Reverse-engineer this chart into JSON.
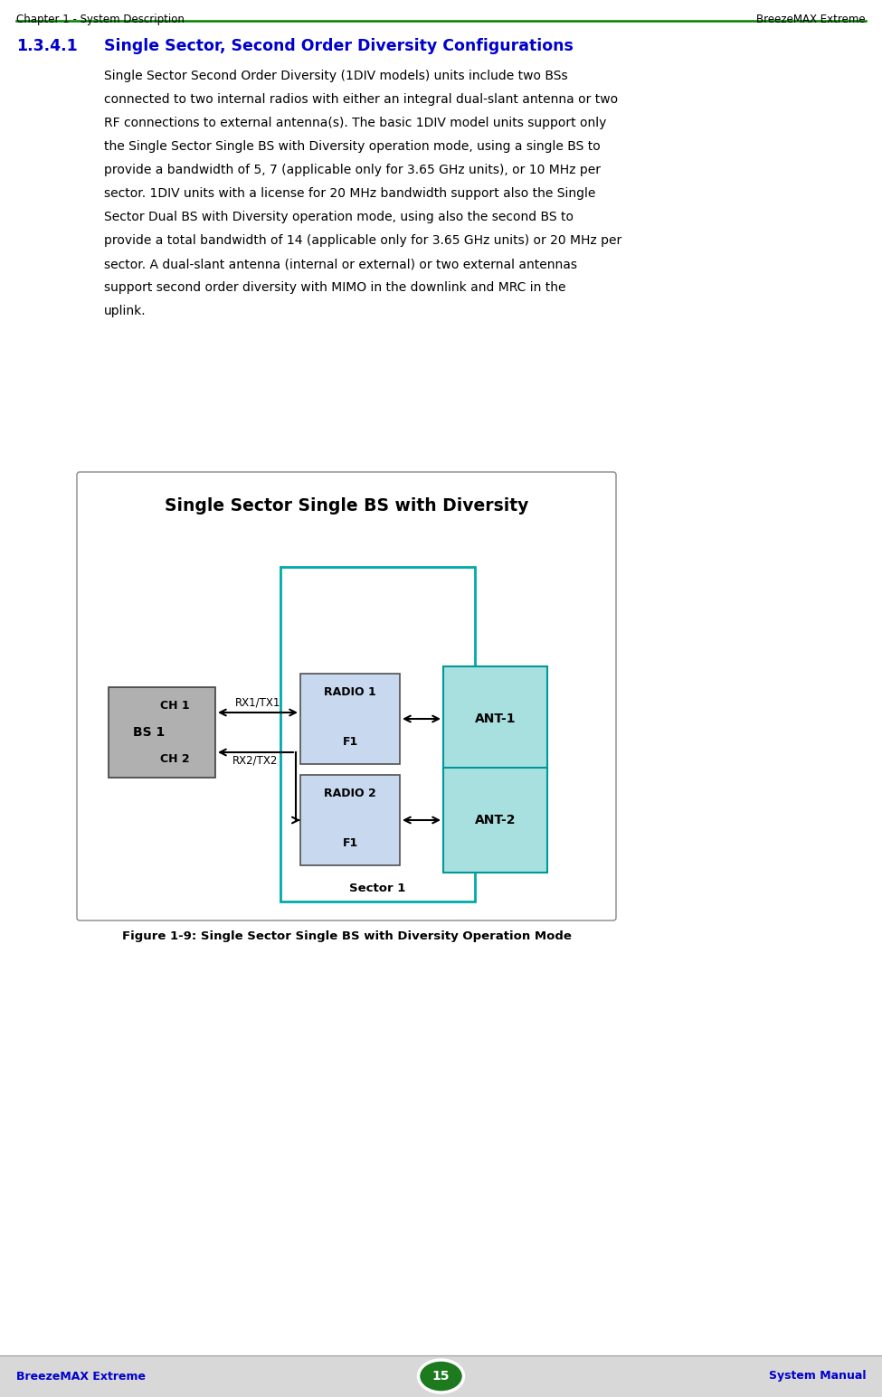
{
  "page_header_left": "Chapter 1 - System Description",
  "page_header_right": "BreezeMAX Extreme",
  "header_line_color": "#008000",
  "section_number": "1.3.4.1",
  "section_title": "Single Sector, Second Order Diversity Configurations",
  "section_color": "#0000CC",
  "body_text": [
    "Single Sector Second Order Diversity (1DIV models) units include two BSs",
    "connected to two internal radios with either an integral dual-slant antenna or two",
    "RF connections to external antenna(s). The basic 1DIV model units support only",
    "the Single Sector Single BS with Diversity operation mode, using a single BS to",
    "provide a bandwidth of 5, 7 (applicable only for 3.65 GHz units), or 10 MHz per",
    "sector. 1DIV units with a license for 20 MHz bandwidth support also the Single",
    "Sector Dual BS with Diversity operation mode, using also the second BS to",
    "provide a total bandwidth of 14 (applicable only for 3.65 GHz units) or 20 MHz per",
    "sector. A dual-slant antenna (internal or external) or two external antennas",
    "support second order diversity with MIMO in the downlink and MRC in the",
    "uplink."
  ],
  "diagram_title_normal": "Single Sector Single BS ",
  "diagram_title_bold": "with Diversity",
  "diagram_bg": "#FFFFFF",
  "sector_border_color": "#00AAAA",
  "bs_box_color": "#B0B0B0",
  "radio_box_color": "#C8D8EE",
  "ant_box_color": "#A8E0E0",
  "figure_caption": "Figure 1-9: Single Sector Single BS with Diversity Operation Mode",
  "footer_left": "BreezeMAX Extreme",
  "footer_right": "System Manual",
  "footer_page": "15",
  "footer_color": "#0000CC",
  "footer_bg": "#D8D8D8",
  "page_bg": "#FFFFFF"
}
